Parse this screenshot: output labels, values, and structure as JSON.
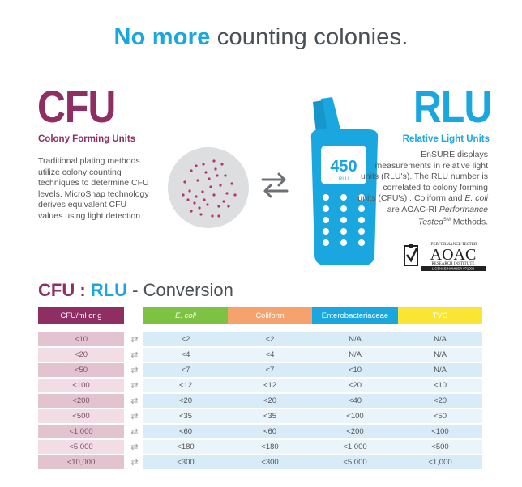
{
  "headline": {
    "highlight": "No more",
    "rest": "counting colonies."
  },
  "cfu": {
    "title": "CFU",
    "subtitle": "Colony Forming Units",
    "lines": [
      "Traditional plating methods",
      "utilize colony counting",
      "techniques to determine CFU",
      "levels. MicroSnap technology",
      "derives equivalent CFU",
      "values using light detection."
    ]
  },
  "meter": {
    "display_value": "450",
    "display_unit": "RLU"
  },
  "rlu": {
    "title": "RLU",
    "subtitle": "Relative Light Units",
    "lines": [
      "EnSURE displays",
      "measurements in relative light",
      "units (RLU's). The RLU number is",
      "correlated to colony forming",
      "units (CFU's) . Coliform and "
    ],
    "ecoli": "E. coli",
    "line6_pre": "are AOAC-RI ",
    "line6_italic": "Performance",
    "line7_italic": "Tested",
    "line7_sm": "SM",
    "line7_post": " Methods."
  },
  "aoac": {
    "top": "PERFORMANCE TESTED",
    "name": "AOAC",
    "sub": "RESEARCH INSTITUTE",
    "license": "LICENSE NUMBER 071002"
  },
  "conversion": {
    "cfu": "CFU",
    "colon": ":",
    "rlu": "RLU",
    "dash": " - Conversion"
  },
  "table": {
    "headers": {
      "cfu": "CFU/ml or g",
      "ecoli": "E. coli",
      "coliform": "Coliform",
      "entero": "Enterobacteriaceae",
      "tvc": "TVC"
    },
    "symbol": "⇄",
    "rows": [
      {
        "cfu": "<10",
        "ecoli": "<2",
        "coliform": "<2",
        "entero": "N/A",
        "tvc": "N/A"
      },
      {
        "cfu": "<20",
        "ecoli": "<4",
        "coliform": "<4",
        "entero": "N/A",
        "tvc": "N/A"
      },
      {
        "cfu": "<50",
        "ecoli": "<7",
        "coliform": "<7",
        "entero": "<10",
        "tvc": "N/A"
      },
      {
        "cfu": "<100",
        "ecoli": "<12",
        "coliform": "<12",
        "entero": "<20",
        "tvc": "<10"
      },
      {
        "cfu": "<200",
        "ecoli": "<20",
        "coliform": "<20",
        "entero": "<40",
        "tvc": "<20"
      },
      {
        "cfu": "<500",
        "ecoli": "<35",
        "coliform": "<35",
        "entero": "<100",
        "tvc": "<50"
      },
      {
        "cfu": "<1,000",
        "ecoli": "<60",
        "coliform": "<60",
        "entero": "<200",
        "tvc": "<100"
      },
      {
        "cfu": "<5,000",
        "ecoli": "<180",
        "coliform": "<180",
        "entero": "<1,000",
        "tvc": "<500"
      },
      {
        "cfu": "<10,000",
        "ecoli": "<300",
        "coliform": "<300",
        "entero": "<5,000",
        "tvc": "<1,000"
      }
    ]
  },
  "colors": {
    "cfu_accent": "#8e2e63",
    "rlu_accent": "#1aa7e0",
    "ecoli": "#7dc243",
    "coliform": "#f5a26c",
    "entero": "#1aa7e0",
    "tvc": "#f8e534"
  }
}
